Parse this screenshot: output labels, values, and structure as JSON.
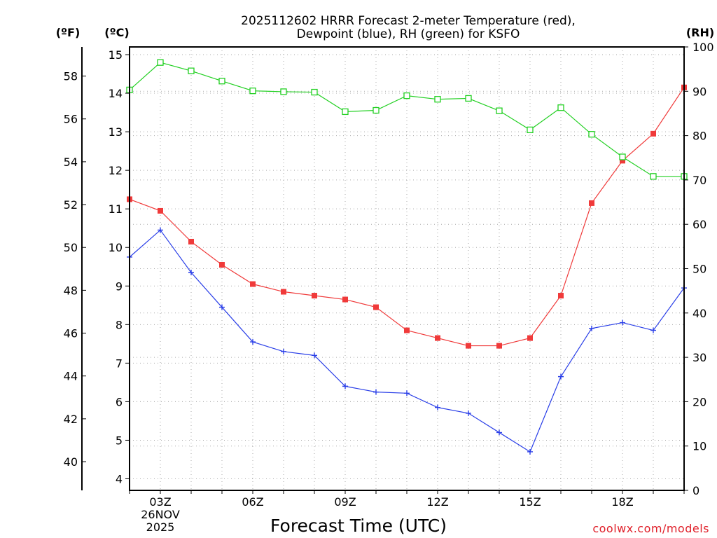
{
  "chart_data": {
    "type": "line",
    "title": [
      "2025112602 HRRR Forecast 2-meter Temperature (red),",
      "Dewpoint (blue), RH (green) for KSFO"
    ],
    "xlabel": "Forecast Time (UTC)",
    "credit": "coolwx.com/models",
    "units": {
      "fahrenheit": "(ºF)",
      "celsius": "(ºC)",
      "rh": "(RH)"
    },
    "x": [
      "02Z",
      "03Z",
      "04Z",
      "05Z",
      "06Z",
      "07Z",
      "08Z",
      "09Z",
      "10Z",
      "11Z",
      "12Z",
      "13Z",
      "14Z",
      "15Z",
      "16Z",
      "17Z",
      "18Z",
      "19Z",
      "20Z"
    ],
    "x_tick_labels": [
      {
        "at": "03Z",
        "lines": [
          "03Z",
          "26NOV",
          "2025"
        ]
      },
      {
        "at": "06Z",
        "lines": [
          "06Z"
        ]
      },
      {
        "at": "09Z",
        "lines": [
          "09Z"
        ]
      },
      {
        "at": "12Z",
        "lines": [
          "12Z"
        ]
      },
      {
        "at": "15Z",
        "lines": [
          "15Z"
        ]
      },
      {
        "at": "18Z",
        "lines": [
          "18Z"
        ]
      }
    ],
    "y_left_celsius": {
      "ylim": [
        3.7,
        15.2
      ],
      "ticks": [
        "4",
        "5",
        "6",
        "7",
        "8",
        "9",
        "10",
        "11",
        "12",
        "13",
        "14",
        "15"
      ]
    },
    "y_left_fahrenheit": {
      "ylim": [
        38.66,
        59.36
      ],
      "ticks": [
        "40",
        "42",
        "44",
        "46",
        "48",
        "50",
        "52",
        "54",
        "56",
        "58"
      ]
    },
    "y_right_rh": {
      "ylim": [
        0,
        100
      ],
      "ticks": [
        "0",
        "10",
        "20",
        "30",
        "40",
        "50",
        "60",
        "70",
        "80",
        "90",
        "100"
      ]
    },
    "grid": true,
    "series": [
      {
        "name": "Temperature",
        "axis": "celsius",
        "color": "#f03a3a",
        "marker": "filled-square",
        "values": [
          11.25,
          10.95,
          10.15,
          9.55,
          9.05,
          8.85,
          8.75,
          8.65,
          8.45,
          7.85,
          7.65,
          7.45,
          7.45,
          7.65,
          8.75,
          11.15,
          12.25,
          12.95,
          14.15
        ]
      },
      {
        "name": "Dewpoint",
        "axis": "celsius",
        "color": "#2a3fe8",
        "marker": "plus",
        "values": [
          9.75,
          10.45,
          9.35,
          8.45,
          7.55,
          7.3,
          7.2,
          6.4,
          6.25,
          6.22,
          5.85,
          5.7,
          5.2,
          4.7,
          6.65,
          7.9,
          8.05,
          7.85,
          8.95
        ]
      },
      {
        "name": "RH",
        "axis": "rh",
        "color": "#22d022",
        "marker": "open-square",
        "values": [
          90.3,
          96.5,
          94.6,
          92.3,
          90.1,
          89.9,
          89.8,
          85.4,
          85.7,
          89.0,
          88.2,
          88.4,
          85.6,
          81.3,
          86.3,
          80.3,
          75.2,
          70.8,
          70.8
        ]
      }
    ]
  }
}
